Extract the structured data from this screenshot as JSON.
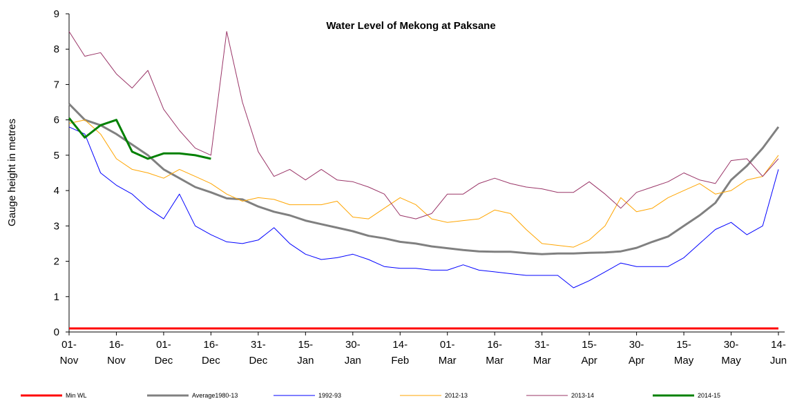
{
  "chart_data": {
    "type": "line",
    "title": "Water Level of Mekong at Paksane",
    "y_label": "Gauge height in metres",
    "x": [
      0,
      5,
      10,
      15,
      20,
      25,
      30,
      35,
      40,
      45,
      50,
      55,
      60,
      65,
      70,
      75,
      80,
      85,
      90,
      95,
      100,
      105,
      110,
      115,
      120,
      125,
      130,
      135,
      140,
      145,
      150,
      155,
      160,
      165,
      170,
      175,
      180,
      185,
      190,
      195,
      200,
      205,
      210,
      215,
      220,
      225
    ],
    "xlim": [
      0,
      227
    ],
    "xticks": [
      {
        "value": 0,
        "label": "01- Nov"
      },
      {
        "value": 15,
        "label": "16- Nov"
      },
      {
        "value": 30,
        "label": "01- Dec"
      },
      {
        "value": 45,
        "label": "16- Dec"
      },
      {
        "value": 60,
        "label": "31- Dec"
      },
      {
        "value": 75,
        "label": "15- Jan"
      },
      {
        "value": 90,
        "label": "30- Jan"
      },
      {
        "value": 105,
        "label": "14- Feb"
      },
      {
        "value": 120,
        "label": "01- Mar"
      },
      {
        "value": 135,
        "label": "16- Mar"
      },
      {
        "value": 150,
        "label": "31- Mar"
      },
      {
        "value": 165,
        "label": "15- Apr"
      },
      {
        "value": 180,
        "label": "30- Apr"
      },
      {
        "value": 195,
        "label": "15- May"
      },
      {
        "value": 210,
        "label": "30- May"
      },
      {
        "value": 225,
        "label": "14- Jun"
      }
    ],
    "ylim": [
      0,
      9
    ],
    "yticks": [
      0,
      1,
      2,
      3,
      4,
      5,
      6,
      7,
      8,
      9
    ],
    "legend": "bottom",
    "series": [
      {
        "name": "Min WL",
        "color": "#ff0000",
        "width": 3,
        "values": [
          0.1,
          0.1,
          0.1,
          0.1,
          0.1,
          0.1,
          0.1,
          0.1,
          0.1,
          0.1,
          0.1,
          0.1,
          0.1,
          0.1,
          0.1,
          0.1,
          0.1,
          0.1,
          0.1,
          0.1,
          0.1,
          0.1,
          0.1,
          0.1,
          0.1,
          0.1,
          0.1,
          0.1,
          0.1,
          0.1,
          0.1,
          0.1,
          0.1,
          0.1,
          0.1,
          0.1,
          0.1,
          0.1,
          0.1,
          0.1,
          0.1,
          0.1,
          0.1,
          0.1,
          0.1,
          0.1
        ]
      },
      {
        "name": "Average1980-13",
        "color": "#808080",
        "width": 3,
        "values": [
          6.45,
          6.0,
          5.85,
          5.6,
          5.3,
          5.0,
          4.6,
          4.35,
          4.1,
          3.95,
          3.78,
          3.75,
          3.55,
          3.4,
          3.3,
          3.15,
          3.05,
          2.95,
          2.85,
          2.72,
          2.65,
          2.55,
          2.5,
          2.42,
          2.37,
          2.32,
          2.28,
          2.27,
          2.27,
          2.23,
          2.2,
          2.22,
          2.22,
          2.24,
          2.25,
          2.28,
          2.38,
          2.55,
          2.7,
          3.0,
          3.3,
          3.65,
          4.3,
          4.7,
          5.2,
          5.8
        ]
      },
      {
        "name": "1992-93",
        "color": "#0000ff",
        "width": 1,
        "values": [
          5.8,
          5.6,
          4.5,
          4.15,
          3.9,
          3.5,
          3.2,
          3.9,
          3.0,
          2.75,
          2.55,
          2.5,
          2.6,
          2.95,
          2.5,
          2.2,
          2.05,
          2.1,
          2.2,
          2.05,
          1.85,
          1.8,
          1.8,
          1.75,
          1.75,
          1.9,
          1.75,
          1.7,
          1.65,
          1.6,
          1.6,
          1.6,
          1.25,
          1.45,
          1.7,
          1.95,
          1.85,
          1.85,
          1.85,
          2.1,
          2.5,
          2.9,
          3.1,
          2.75,
          3.0,
          4.6
        ]
      },
      {
        "name": "2012-13",
        "color": "#ffa500",
        "width": 1,
        "values": [
          5.9,
          6.0,
          5.6,
          4.9,
          4.6,
          4.5,
          4.35,
          4.6,
          4.4,
          4.2,
          3.9,
          3.7,
          3.8,
          3.75,
          3.6,
          3.6,
          3.6,
          3.7,
          3.25,
          3.2,
          3.5,
          3.8,
          3.6,
          3.2,
          3.1,
          3.15,
          3.2,
          3.45,
          3.35,
          2.9,
          2.5,
          2.45,
          2.4,
          2.6,
          3.0,
          3.8,
          3.4,
          3.5,
          3.8,
          4.0,
          4.2,
          3.9,
          4.0,
          4.3,
          4.4,
          5.0
        ]
      },
      {
        "name": "2013-14",
        "color": "#993366",
        "width": 1,
        "values": [
          8.5,
          7.8,
          7.9,
          7.3,
          6.9,
          7.4,
          6.3,
          5.7,
          5.2,
          5.0,
          8.5,
          6.5,
          5.1,
          4.4,
          4.6,
          4.3,
          4.6,
          4.3,
          4.25,
          4.1,
          3.9,
          3.3,
          3.2,
          3.35,
          3.9,
          3.9,
          4.2,
          4.35,
          4.2,
          4.1,
          4.05,
          3.95,
          3.95,
          4.25,
          3.9,
          3.5,
          3.95,
          4.1,
          4.25,
          4.5,
          4.3,
          4.2,
          4.85,
          4.9,
          4.4,
          4.9
        ]
      },
      {
        "name": "2014-15",
        "color": "#008000",
        "width": 3,
        "values": [
          6.05,
          5.5,
          5.85,
          6.0,
          5.1,
          4.9,
          5.05,
          5.05,
          5.0,
          4.9,
          null,
          null,
          null,
          null,
          null,
          null,
          null,
          null,
          null,
          null,
          null,
          null,
          null,
          null,
          null,
          null,
          null,
          null,
          null,
          null,
          null,
          null,
          null,
          null,
          null,
          null,
          null,
          null,
          null,
          null,
          null,
          null,
          null,
          null,
          null,
          null
        ]
      }
    ]
  }
}
